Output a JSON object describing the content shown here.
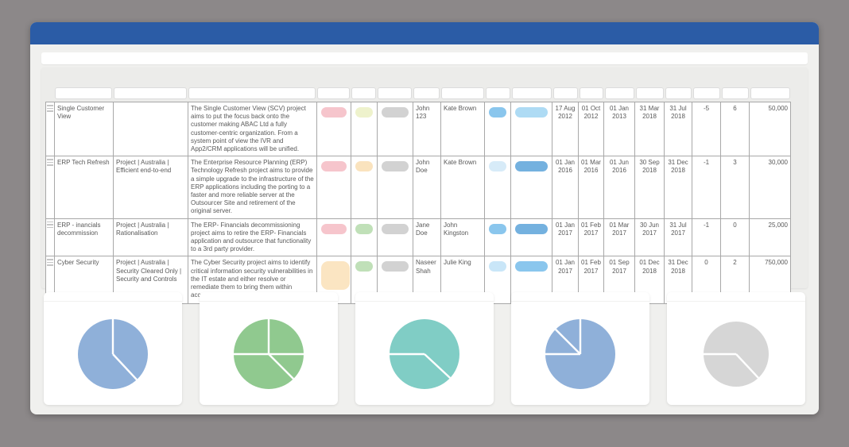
{
  "theme": {
    "titlebar_color": "#2B5CA6",
    "window_bg": "#F0F0EE",
    "pane_bg": "#ECECEA",
    "desktop_bg": "#8C8889"
  },
  "table": {
    "columns": [
      {
        "key": "handle",
        "width": 11,
        "type": "handle",
        "filter": false
      },
      {
        "key": "name",
        "width": 74,
        "type": "text",
        "filter": true
      },
      {
        "key": "categories",
        "width": 94,
        "type": "text",
        "filter": true
      },
      {
        "key": "description",
        "width": 162,
        "type": "text",
        "filter": true
      },
      {
        "key": "status1",
        "width": 43,
        "type": "pill",
        "filter": true
      },
      {
        "key": "status2",
        "width": 33,
        "type": "pill",
        "filter": true
      },
      {
        "key": "status3",
        "width": 45,
        "type": "pill",
        "filter": true
      },
      {
        "key": "owner",
        "width": 35,
        "type": "text",
        "filter": true
      },
      {
        "key": "manager",
        "width": 55,
        "type": "text",
        "filter": true
      },
      {
        "key": "badge1",
        "width": 33,
        "type": "pill",
        "filter": true
      },
      {
        "key": "badge2",
        "width": 52,
        "type": "pill",
        "filter": true
      },
      {
        "key": "date1",
        "width": 33,
        "type": "date",
        "filter": true
      },
      {
        "key": "date2",
        "width": 32,
        "type": "date",
        "filter": true
      },
      {
        "key": "date3",
        "width": 39,
        "type": "date",
        "filter": true
      },
      {
        "key": "date4",
        "width": 37,
        "type": "date",
        "filter": true
      },
      {
        "key": "date5",
        "width": 35,
        "type": "date",
        "filter": true
      },
      {
        "key": "num1",
        "width": 36,
        "type": "num",
        "filter": true
      },
      {
        "key": "num2",
        "width": 36,
        "type": "num",
        "filter": true
      },
      {
        "key": "num3",
        "width": 52,
        "type": "numright",
        "filter": true
      }
    ],
    "rows": [
      {
        "height": 60,
        "name": "Single Customer View",
        "categories": "",
        "description": "The Single Customer View (SCV) project aims to put the focus back onto the customer making ABAC Ltd a fully customer-centric organization. From a system point of view the IVR and App2/CRM applications will be unified.",
        "status1": {
          "color": "#F6C5CC"
        },
        "status2": {
          "color": "#EEF2CC"
        },
        "status3": {
          "color": "#D2D2D2"
        },
        "owner": "John 123",
        "manager": "Kate Brown",
        "badge1": {
          "color": "#8AC6ED"
        },
        "badge2": {
          "color": "#AEDBF4"
        },
        "date1": "17 Aug 2012",
        "date2": "01 Oct 2012",
        "date3": "01 Jan 2013",
        "date4": "31 Mar 2018",
        "date5": "31 Jul 2018",
        "num1": "-5",
        "num2": "6",
        "num3": "50,000"
      },
      {
        "height": 59,
        "name": "ERP Tech Refresh",
        "categories": "Project | Australia | Efficient end-to-end",
        "description": "The Enterprise Resource Planning (ERP) Technology Refresh project aims to provide a simple upgrade to the infrastructure of the ERP applications including the porting to a faster and more reliable server at the Outsourcer Site and retirement of the original server.",
        "status1": {
          "color": "#F6C5CC"
        },
        "status2": {
          "color": "#FAE3BE"
        },
        "status3": {
          "color": "#D2D2D2"
        },
        "owner": "John Doe",
        "manager": "Kate Brown",
        "badge1": {
          "color": "#D7EBF8"
        },
        "badge2": {
          "color": "#74B1DF",
          "dotted": true
        },
        "date1": "01 Jan 2016",
        "date2": "01 Mar 2016",
        "date3": "01 Jun 2016",
        "date4": "30 Sep 2018",
        "date5": "31 Dec 2018",
        "num1": "-1",
        "num2": "3",
        "num3": "30,000"
      },
      {
        "height": 43,
        "name": "ERP - inancials decommission",
        "categories": "Project | Australia | Rationalisation",
        "description": "The ERP- Financials decommissioning project aims to retire the ERP- Financials application and outsource that functionality to a 3rd party provider.",
        "status1": {
          "color": "#F6C5CC"
        },
        "status2": {
          "color": "#C0E0B8"
        },
        "status3": {
          "color": "#D2D2D2"
        },
        "owner": "Jane Doe",
        "manager": "John Kingston",
        "badge1": {
          "color": "#8AC6ED"
        },
        "badge2": {
          "color": "#74B1DF",
          "dotted": true
        },
        "date1": "01 Jan 2017",
        "date2": "01 Feb 2017",
        "date3": "01 Mar 2017",
        "date4": "30 Jun 2017",
        "date5": "31 Jul 2017",
        "num1": "-1",
        "num2": "0",
        "num3": "25,000"
      },
      {
        "height": 60,
        "name": "Cyber Security",
        "categories": "Project | Australia | Security Cleared Only | Security and Controls",
        "description": "The Cyber Security project aims to identify critical information security vulnerabilities in the IT estate and either resolve or remediate them to bring them within acceptible risk parameters.",
        "status1": {
          "color": "#FBE5C2",
          "tall": true
        },
        "status2": {
          "color": "#C0E0B8"
        },
        "status3": {
          "color": "#D2D2D2"
        },
        "owner": "Naseer Shah",
        "manager": "Julie King",
        "badge1": {
          "color": "#C9E6F8"
        },
        "badge2": {
          "color": "#8AC6ED"
        },
        "date1": "01 Jan 2017",
        "date2": "01 Feb 2017",
        "date3": "01 Sep 2017",
        "date4": "01 Dec 2018",
        "date5": "31 Dec 2018",
        "num1": "0",
        "num2": "2",
        "num3": "750,000"
      }
    ]
  },
  "pies": [
    {
      "name": "pie-chart-1",
      "color": "#8FB0D9",
      "radius": 44,
      "dividers": [
        0,
        137
      ]
    },
    {
      "name": "pie-chart-2",
      "color": "#90C98F",
      "radius": 44,
      "dividers": [
        0,
        90,
        135,
        270
      ]
    },
    {
      "name": "pie-chart-3",
      "color": "#80CDC5",
      "radius": 44,
      "dividers": [
        133,
        270
      ]
    },
    {
      "name": "pie-chart-4",
      "color": "#8FB0D9",
      "radius": 44,
      "dividers": [
        0,
        270,
        315
      ]
    },
    {
      "name": "pie-chart-5",
      "color": "#D6D6D6",
      "radius": 41,
      "dividers": [
        137,
        270
      ]
    }
  ],
  "chart_data": [
    {
      "type": "pie",
      "title": "",
      "values": [
        38,
        62
      ],
      "colors": [
        "#8FB0D9",
        "#8FB0D9"
      ],
      "legend": false
    },
    {
      "type": "pie",
      "title": "",
      "values": [
        25,
        12.5,
        37.5,
        25
      ],
      "colors": [
        "#90C98F",
        "#90C98F",
        "#90C98F",
        "#90C98F"
      ],
      "legend": false
    },
    {
      "type": "pie",
      "title": "",
      "values": [
        62,
        38
      ],
      "colors": [
        "#80CDC5",
        "#80CDC5"
      ],
      "legend": false
    },
    {
      "type": "pie",
      "title": "",
      "values": [
        75,
        12.5,
        12.5
      ],
      "colors": [
        "#8FB0D9",
        "#8FB0D9",
        "#8FB0D9"
      ],
      "legend": false
    },
    {
      "type": "pie",
      "title": "",
      "values": [
        62,
        38
      ],
      "colors": [
        "#D6D6D6",
        "#D6D6D6"
      ],
      "legend": false
    }
  ]
}
